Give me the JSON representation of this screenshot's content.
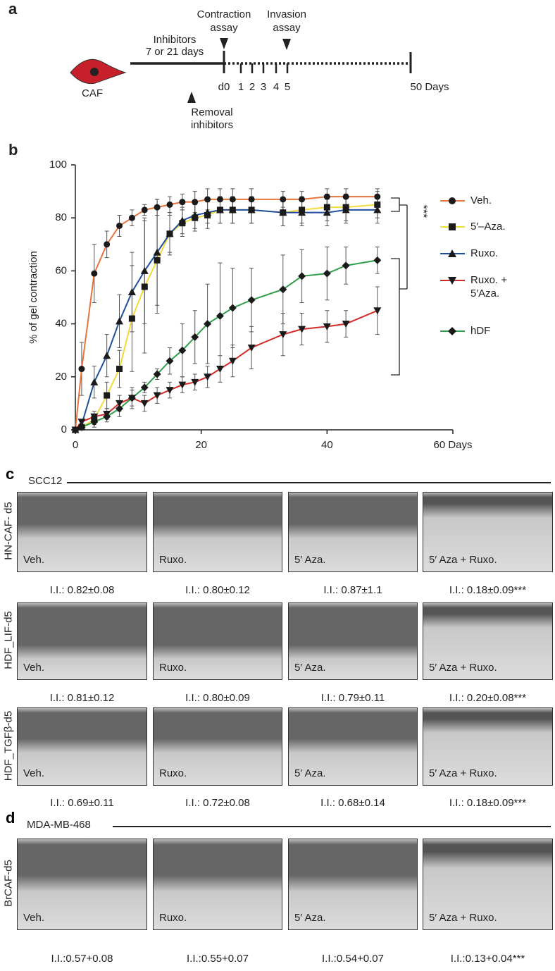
{
  "panel_a": {
    "label": "a",
    "cell": "CAF",
    "inhibitors": [
      "Inhibitors",
      "7 or 21 days"
    ],
    "contraction": [
      "Contraction",
      "assay"
    ],
    "invasion": [
      "Invasion",
      "assay"
    ],
    "removal": [
      "Removal",
      "inhibitors"
    ],
    "days": [
      "d0",
      "1",
      "2",
      "3",
      "4",
      "5"
    ],
    "end": "50 Days"
  },
  "chart_data": {
    "type": "line",
    "panel_label": "b",
    "ylabel": "% of gel contraction",
    "annotation": "***",
    "x": [
      0,
      1,
      3,
      5,
      7,
      9,
      11,
      13,
      15,
      17,
      19,
      21,
      23,
      25,
      28,
      33,
      36,
      40,
      43,
      48
    ],
    "xlim": [
      0,
      60
    ],
    "xticks": [
      0,
      20,
      40,
      {
        "value": 60,
        "label": "60 Days"
      }
    ],
    "ylim": [
      0,
      100
    ],
    "yticks": [
      0,
      20,
      40,
      60,
      80,
      100
    ],
    "series": [
      {
        "name": "Veh.",
        "color": "#e8733a",
        "marker": "circle",
        "values": [
          0,
          23,
          59,
          70,
          77,
          80,
          83,
          84,
          85,
          86,
          86,
          87,
          87,
          87,
          87,
          87,
          87,
          88,
          88,
          88
        ],
        "errors": [
          0,
          10,
          11,
          5,
          4,
          3,
          2,
          3,
          3,
          3,
          4,
          4,
          4,
          4,
          4,
          3,
          3,
          3,
          3,
          3
        ]
      },
      {
        "name": "5′–Aza.",
        "color": "#f2dc3a",
        "marker": "square",
        "values": [
          0,
          1,
          4,
          13,
          23,
          42,
          54,
          64,
          74,
          78,
          80,
          81,
          83,
          83,
          83,
          82,
          83,
          84,
          84,
          85
        ],
        "errors": [
          0,
          1,
          2,
          5,
          7,
          20,
          25,
          20,
          8,
          5,
          5,
          5,
          5,
          5,
          5,
          5,
          5,
          5,
          5,
          5
        ]
      },
      {
        "name": "Ruxo.",
        "color": "#1f4e9e",
        "marker": "triangle",
        "values": [
          0,
          2,
          18,
          28,
          41,
          52,
          60,
          67,
          74,
          79,
          81,
          82,
          83,
          83,
          83,
          82,
          82,
          82,
          83,
          83
        ],
        "errors": [
          0,
          1,
          6,
          8,
          10,
          15,
          20,
          20,
          7,
          5,
          5,
          4,
          5,
          5,
          5,
          5,
          5,
          5,
          5,
          5
        ]
      },
      {
        "name": "Ruxo. + 5′Aza.",
        "color": "#d42a2a",
        "marker": "triangle-down",
        "values": [
          0,
          3,
          5,
          6,
          10,
          12,
          10,
          13,
          15,
          17,
          18,
          20,
          23,
          26,
          31,
          36,
          38,
          39,
          40,
          45
        ],
        "errors": [
          0,
          1,
          2,
          2,
          3,
          3,
          3,
          3,
          3,
          3,
          3,
          4,
          5,
          6,
          8,
          8,
          6,
          6,
          5,
          9
        ]
      },
      {
        "name": "hDF",
        "color": "#2e9e4a",
        "marker": "diamond",
        "values": [
          0,
          1,
          3,
          5,
          8,
          12,
          16,
          21,
          26,
          30,
          35,
          40,
          43,
          46,
          49,
          53,
          58,
          59,
          62,
          64
        ],
        "errors": [
          0,
          1,
          2,
          2,
          3,
          4,
          2,
          2,
          5,
          10,
          10,
          15,
          20,
          15,
          12,
          13,
          10,
          10,
          7,
          5
        ]
      }
    ]
  },
  "panel_c": {
    "label": "c",
    "cell_line": "SCC12",
    "rows": [
      {
        "name": "HN-CAF- d5",
        "labels": [
          "Veh.",
          "Ruxo.",
          "5′ Aza.",
          "5′ Aza + Ruxo."
        ],
        "indices": [
          "I.I.: 0.82±0.08",
          "I.I.: 0.80±0.12",
          "I.I.: 0.87±1.1",
          "I.I.: 0.18±0.09***"
        ]
      },
      {
        "name": "HDF_LIF-d5",
        "labels": [
          "Veh.",
          "Ruxo.",
          "5′ Aza.",
          "5′ Aza + Ruxo."
        ],
        "indices": [
          "I.I.: 0.81±0.12",
          "I.I.: 0.80±0.09",
          "I.I.: 0.79±0.11",
          "I.I.: 0.20±0.08***"
        ]
      },
      {
        "name": "HDF_TGFβ-d5",
        "labels": [
          "Veh.",
          "Ruxo.",
          "5′ Aza.",
          "5′ Aza + Ruxo."
        ],
        "indices": [
          "I.I.: 0.69±0.11",
          "I.I.: 0.72±0.08",
          "I.I.: 0.68±0.14",
          "I.I.: 0.18±0.09***"
        ]
      }
    ]
  },
  "panel_d": {
    "label": "d",
    "cell_line": "MDA-MB-468",
    "rows": [
      {
        "name": "BrCAF-d5",
        "labels": [
          "Veh.",
          "Ruxo.",
          "5′ Aza.",
          "5′ Aza + Ruxo."
        ],
        "indices": [
          "I.I.:0.57+0.08",
          "I.I.:0.55+0.07",
          "I.I.:0.54+0.07",
          "I.I.:0.13+0.04***"
        ]
      }
    ]
  }
}
